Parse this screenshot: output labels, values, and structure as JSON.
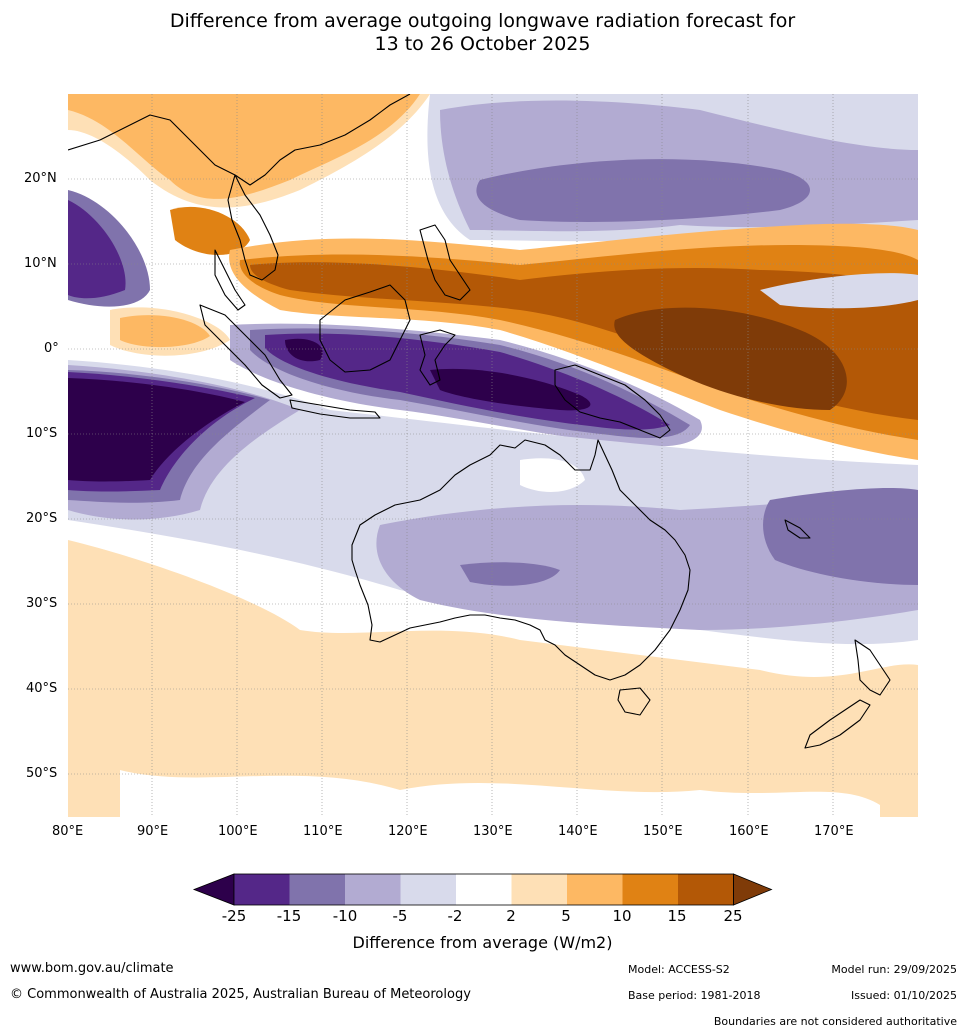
{
  "title": {
    "line1": "Difference from average outgoing longwave radiation forecast for",
    "line2": "13 to 26 October 2025"
  },
  "map": {
    "lon_labels": [
      "80°E",
      "90°E",
      "100°E",
      "110°E",
      "120°E",
      "130°E",
      "140°E",
      "150°E",
      "160°E",
      "170°E"
    ],
    "lat_labels": [
      "20°N",
      "10°N",
      "0°",
      "10°S",
      "20°S",
      "30°S",
      "40°S",
      "50°S"
    ],
    "lon_range": [
      80,
      180
    ],
    "lat_range": [
      -55,
      30
    ],
    "regions_depicted": [
      "Indian Ocean",
      "Maritime Continent",
      "Australia",
      "New Zealand",
      "Western Pacific"
    ]
  },
  "colorbar": {
    "ticks": [
      "-25",
      "-15",
      "-10",
      "-5",
      "-2",
      "2",
      "5",
      "10",
      "15",
      "25"
    ],
    "colors": [
      "#2d004b",
      "#542788",
      "#8073ac",
      "#b2abd2",
      "#d8daeb",
      "#ffffff",
      "#fee0b6",
      "#fdb863",
      "#e08214",
      "#b35806",
      "#7f3b08"
    ],
    "label": "Difference from average (W/m2)"
  },
  "footer": {
    "website": "www.bom.gov.au/climate",
    "copyright": "© Commonwealth of Australia 2025, Australian Bureau of Meteorology",
    "model": "Model: ACCESS-S2",
    "base_period": "Base period: 1981-2018",
    "model_run": "Model run: 29/09/2025",
    "issued": "Issued: 01/10/2025",
    "disclaimer": "Boundaries are not considered authoritative"
  }
}
